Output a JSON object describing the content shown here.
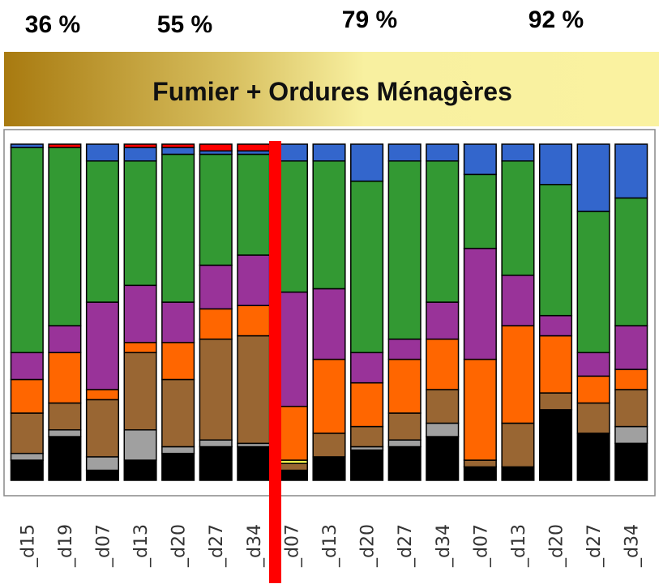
{
  "chart_data": {
    "type": "stacked_bar",
    "title": "Fumier + Ordures Ménagères",
    "annotations": [
      "36 %",
      "55 %",
      "79 %",
      "92 %"
    ],
    "categories": [
      "_d15",
      "_d19",
      "_d07",
      "_d13",
      "_d20",
      "_d27",
      "_d34",
      "_d07",
      "_d13",
      "_d20",
      "_d27",
      "_d34",
      "_d07",
      "_d13",
      "_d20",
      "_d27",
      "_d34"
    ],
    "ylim": [
      0,
      100
    ],
    "series": [
      {
        "color": "#000000",
        "values": [
          6,
          13,
          3,
          6,
          8,
          10,
          10,
          3,
          7,
          9,
          10,
          13,
          4,
          4,
          21,
          14,
          11
        ]
      },
      {
        "color": "#a0a0a0",
        "values": [
          2,
          2,
          4,
          9,
          2,
          2,
          1,
          0,
          0,
          1,
          2,
          4,
          0,
          0,
          0,
          0,
          5
        ]
      },
      {
        "color": "#996633",
        "values": [
          12,
          8,
          17,
          23,
          20,
          30,
          32,
          2,
          7,
          6,
          8,
          10,
          2,
          13,
          5,
          9,
          11
        ]
      },
      {
        "color": "#e8e84a",
        "values": [
          0,
          0,
          0,
          0,
          0,
          0,
          0,
          1,
          0,
          0,
          0,
          0,
          0,
          0,
          0,
          0,
          0
        ]
      },
      {
        "color": "#ff6600",
        "values": [
          10,
          15,
          3,
          3,
          11,
          9,
          9,
          16,
          22,
          13,
          16,
          15,
          30,
          29,
          17,
          8,
          6
        ]
      },
      {
        "color": "#993399",
        "values": [
          8,
          8,
          26,
          17,
          12,
          13,
          15,
          34,
          21,
          9,
          6,
          11,
          33,
          15,
          6,
          7,
          13
        ]
      },
      {
        "color": "#339933",
        "values": [
          61,
          53,
          42,
          37,
          44,
          33,
          30,
          39,
          38,
          51,
          53,
          42,
          22,
          34,
          39,
          42,
          38
        ]
      },
      {
        "color": "#3366cc",
        "values": [
          1,
          0,
          5,
          4,
          2,
          1,
          1,
          5,
          5,
          11,
          5,
          5,
          9,
          5,
          12,
          20,
          16
        ]
      },
      {
        "color": "#ff0000",
        "values": [
          0,
          1,
          0,
          1,
          1,
          2,
          2,
          0,
          0,
          0,
          0,
          0,
          0,
          0,
          0,
          0,
          0
        ]
      }
    ]
  }
}
